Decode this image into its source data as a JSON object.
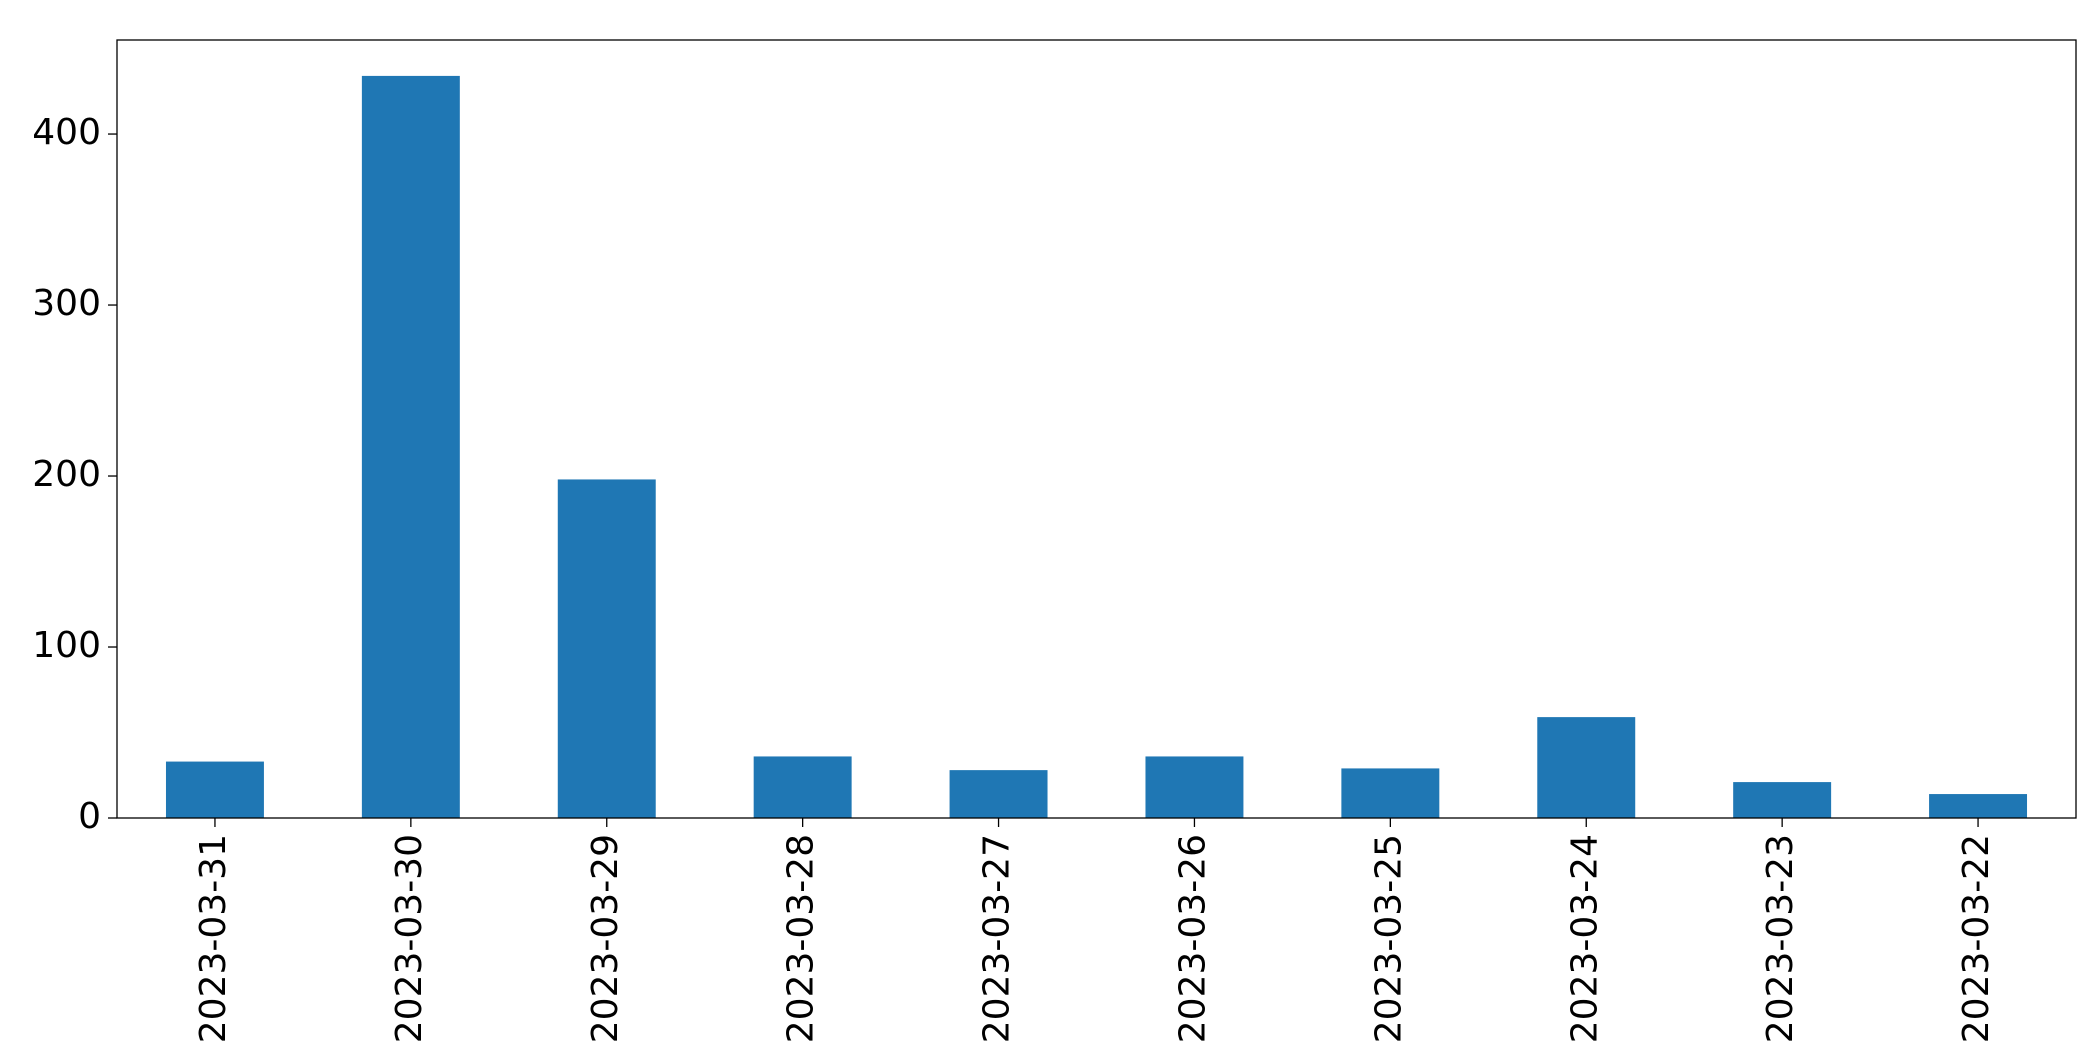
{
  "chart_data": {
    "type": "bar",
    "categories": [
      "2023-03-31",
      "2023-03-30",
      "2023-03-29",
      "2023-03-28",
      "2023-03-27",
      "2023-03-26",
      "2023-03-25",
      "2023-03-24",
      "2023-03-23",
      "2023-03-22"
    ],
    "values": [
      33,
      434,
      198,
      36,
      28,
      36,
      29,
      59,
      21,
      14
    ],
    "color": "#1f77b4",
    "ylim": [
      0,
      455
    ],
    "yticks": [
      0,
      100,
      200,
      300,
      400
    ],
    "grid": false
  }
}
